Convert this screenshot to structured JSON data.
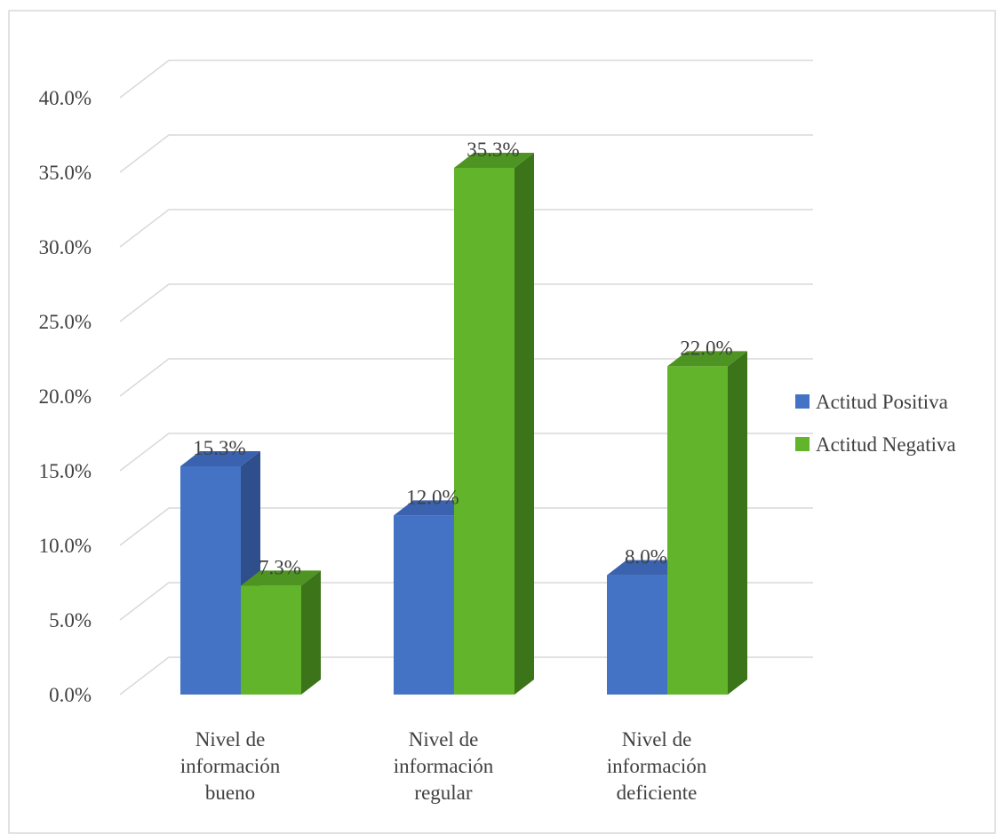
{
  "chart_data": {
    "type": "bar",
    "style": "3d-clustered-column",
    "categories": [
      "Nivel de información bueno",
      "Nivel de información regular",
      "Nivel de información deficiente"
    ],
    "series": [
      {
        "name": "Actitud Positiva",
        "values": [
          15.3,
          12.0,
          8.0
        ],
        "color": "#4472C4",
        "side_color": "#2F4E8C",
        "top_color": "#3A62AE"
      },
      {
        "name": "Actitud Negativa",
        "values": [
          7.3,
          35.3,
          22.0
        ],
        "color": "#62B42A",
        "side_color": "#3B7419",
        "top_color": "#4E9422"
      }
    ],
    "data_labels": [
      [
        "15.3%",
        "12.0%",
        "8.0%"
      ],
      [
        "7.3%",
        "35.3%",
        "22.0%"
      ]
    ],
    "y_ticks": [
      "0.0%",
      "5.0%",
      "10.0%",
      "15.0%",
      "20.0%",
      "25.0%",
      "30.0%",
      "35.0%",
      "40.0%"
    ],
    "ylim": [
      0,
      40
    ],
    "grid": true,
    "legend": "right",
    "title": "",
    "xlabel": "",
    "ylabel": ""
  }
}
